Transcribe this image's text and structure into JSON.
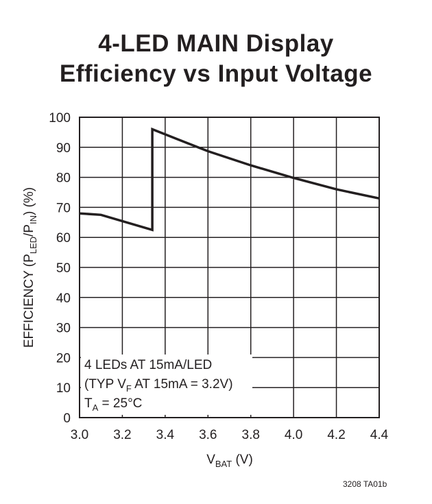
{
  "chart_data": {
    "type": "line",
    "title": "4-LED MAIN Display",
    "subtitle": "Efficiency vs Input Voltage",
    "xlabel": {
      "main": "V",
      "sub": "BAT",
      "unit": " (V)"
    },
    "ylabel": {
      "p1": "EFFICIENCY (P",
      "s1": "LED",
      "p2": "/P",
      "s2": "IN",
      "p3": ") (%)"
    },
    "xlim": [
      3.0,
      4.4
    ],
    "ylim": [
      0,
      100
    ],
    "x_ticks": [
      "3.0",
      "3.2",
      "3.4",
      "3.6",
      "3.8",
      "4.0",
      "4.2",
      "4.4"
    ],
    "y_ticks": [
      "0",
      "10",
      "20",
      "30",
      "40",
      "50",
      "60",
      "70",
      "80",
      "90",
      "100"
    ],
    "grid": true,
    "series": [
      {
        "x": [
          3.0,
          3.1,
          3.34,
          3.34,
          3.5,
          3.6,
          3.8,
          4.0,
          4.2,
          4.4
        ],
        "y": [
          68,
          67.5,
          62.5,
          96,
          91.5,
          88.7,
          84,
          79.8,
          76,
          73
        ]
      }
    ],
    "annotation": {
      "line1": "4 LEDs AT 15mA/LED",
      "line2_a": "(TYP V",
      "line2_sub": "F",
      "line2_b": " AT 15mA = 3.2V)",
      "line3_a": "T",
      "line3_sub": "A",
      "line3_b": " = 25°C"
    }
  },
  "figure_code": "3208 TA01b"
}
